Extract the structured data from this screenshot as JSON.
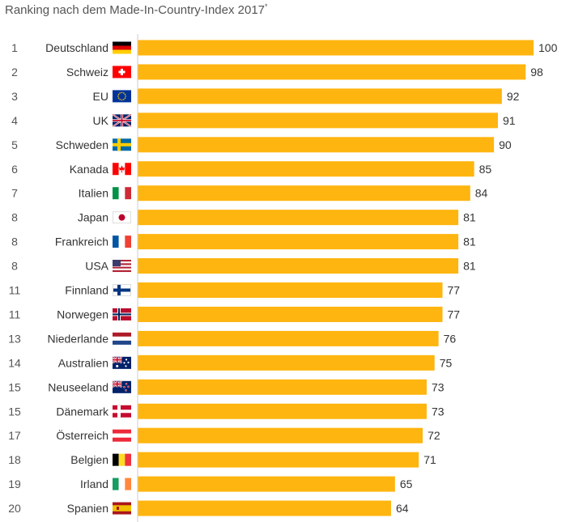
{
  "subtitle": "Ranking nach dem Made-In-Country-Index 2017",
  "subtitle_mark": "*",
  "colors": {
    "bar": "#FFB50F",
    "text": "#333333",
    "rank": "#555555",
    "axis": "#cccccc"
  },
  "chart_data": {
    "type": "bar",
    "orientation": "horizontal",
    "title": "",
    "subtitle": "Ranking nach dem Made-In-Country-Index 2017*",
    "ranks": [
      "1",
      "2",
      "3",
      "4",
      "5",
      "6",
      "7",
      "8",
      "8",
      "8",
      "11",
      "11",
      "13",
      "14",
      "15",
      "15",
      "17",
      "18",
      "19",
      "20"
    ],
    "categories": [
      "Deutschland",
      "Schweiz",
      "EU",
      "UK",
      "Schweden",
      "Kanada",
      "Italien",
      "Japan",
      "Frankreich",
      "USA",
      "Finnland",
      "Norwegen",
      "Niederlande",
      "Australien",
      "Neuseeland",
      "Dänemark",
      "Österreich",
      "Belgien",
      "Irland",
      "Spanien"
    ],
    "flags": [
      "de",
      "ch",
      "eu",
      "uk",
      "se",
      "ca",
      "it",
      "jp",
      "fr",
      "us",
      "fi",
      "no",
      "nl",
      "au",
      "nz",
      "dk",
      "at",
      "be",
      "ie",
      "es"
    ],
    "values": [
      100,
      98,
      92,
      91,
      90,
      85,
      84,
      81,
      81,
      81,
      77,
      77,
      76,
      75,
      73,
      73,
      72,
      71,
      65,
      64
    ],
    "xlim": [
      0,
      100
    ],
    "grid": false,
    "legend": "none"
  }
}
